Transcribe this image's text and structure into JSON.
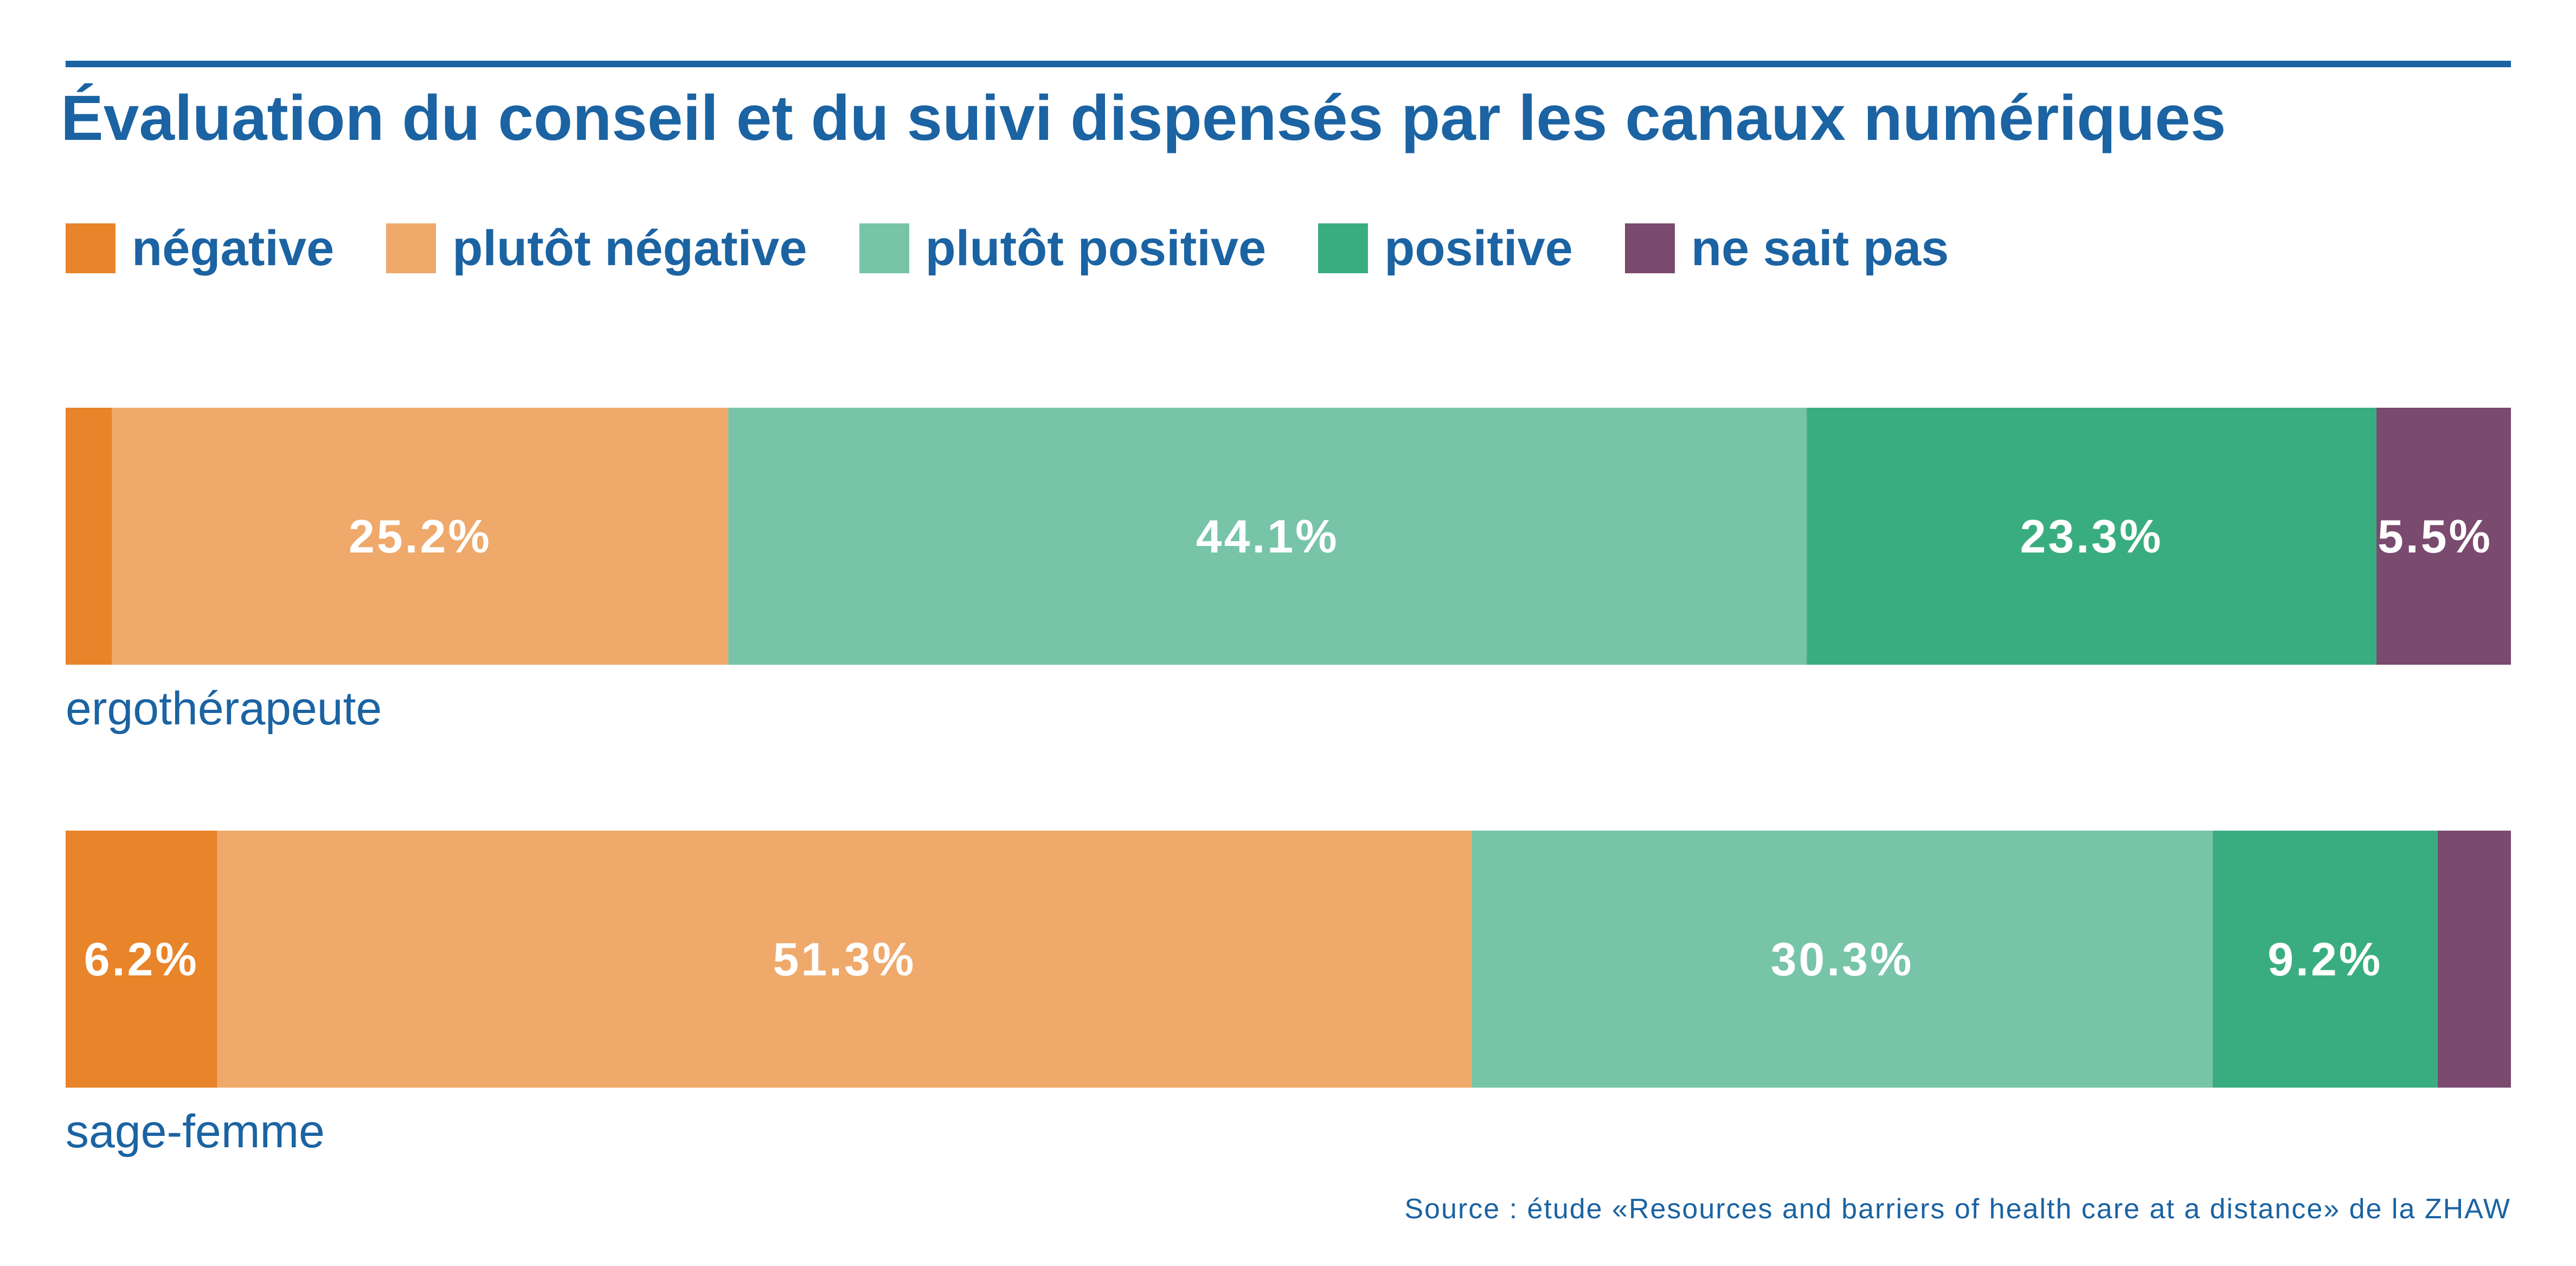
{
  "chart_data": {
    "type": "bar",
    "orientation": "horizontal",
    "stacked": true,
    "title": "Évaluation du conseil et du suivi dispensés par les canaux numériques",
    "legend_position": "top-left",
    "categories": [
      "ergothérapeute",
      "sage-femme"
    ],
    "series": [
      {
        "name": "négative",
        "color": "#e8842a",
        "values": [
          1.9,
          6.2
        ],
        "labels": [
          "",
          "6.2%"
        ]
      },
      {
        "name": "plutôt négative",
        "color": "#efa96b",
        "values": [
          25.2,
          51.3
        ],
        "labels": [
          "25.2%",
          "51.3%"
        ]
      },
      {
        "name": "plutôt positive",
        "color": "#77c4a8",
        "values": [
          44.1,
          30.3
        ],
        "labels": [
          "44.1%",
          "30.3%"
        ]
      },
      {
        "name": "positive",
        "color": "#3aad80",
        "values": [
          23.3,
          9.2
        ],
        "labels": [
          "23.3%",
          "9.2%"
        ]
      },
      {
        "name": "ne sait pas",
        "color": "#7a4a6f",
        "values": [
          5.5,
          3.0
        ],
        "labels": [
          "5.5%",
          ""
        ]
      }
    ],
    "xlim": [
      0,
      100
    ],
    "source": "Source : étude «Resources and barriers of health care at a distance» de la ZHAW"
  }
}
